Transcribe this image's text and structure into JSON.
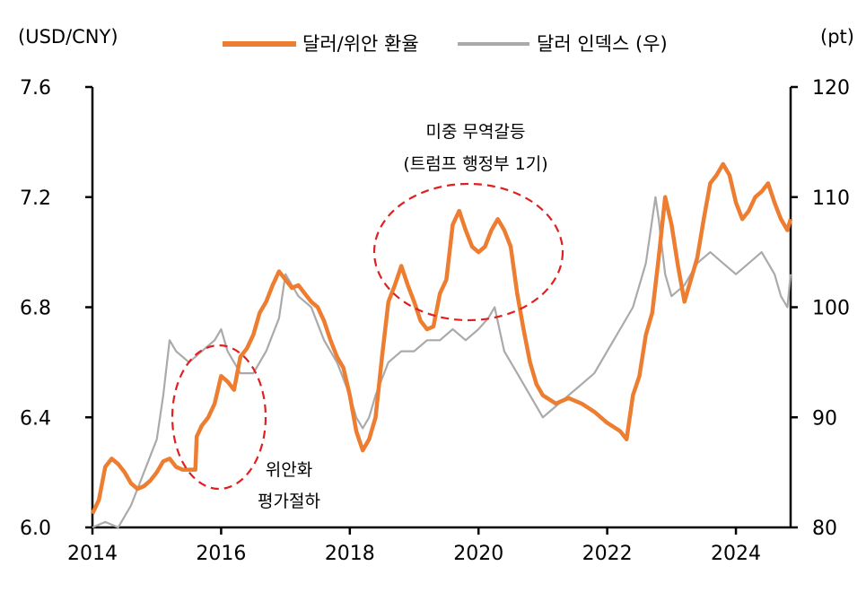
{
  "chart_data": {
    "type": "line",
    "title": "",
    "left_axis": {
      "label": "(USD/CNY)",
      "range": [
        6.0,
        7.6
      ],
      "ticks": [
        "6.0",
        "6.4",
        "6.8",
        "7.2",
        "7.6"
      ]
    },
    "right_axis": {
      "label": "(pt)",
      "range": [
        80,
        120
      ],
      "ticks": [
        "80",
        "90",
        "100",
        "110",
        "120"
      ]
    },
    "x_axis": {
      "range": [
        2014,
        2024.85
      ],
      "ticks": [
        "2014",
        "2016",
        "2018",
        "2020",
        "2022",
        "2024"
      ]
    },
    "legend": {
      "placement": "top"
    },
    "series": [
      {
        "name": "달러/위안 환율",
        "axis": "left",
        "color": "#ED7D31",
        "x": [
          2014.0,
          2014.1,
          2014.2,
          2014.3,
          2014.4,
          2014.5,
          2014.6,
          2014.7,
          2014.8,
          2014.9,
          2015.0,
          2015.1,
          2015.2,
          2015.3,
          2015.4,
          2015.5,
          2015.6,
          2015.62,
          2015.7,
          2015.8,
          2015.9,
          2016.0,
          2016.1,
          2016.2,
          2016.3,
          2016.4,
          2016.5,
          2016.6,
          2016.7,
          2016.8,
          2016.9,
          2017.0,
          2017.1,
          2017.2,
          2017.3,
          2017.4,
          2017.5,
          2017.6,
          2017.7,
          2017.8,
          2017.9,
          2018.0,
          2018.1,
          2018.2,
          2018.3,
          2018.4,
          2018.5,
          2018.6,
          2018.7,
          2018.8,
          2018.9,
          2019.0,
          2019.1,
          2019.2,
          2019.3,
          2019.4,
          2019.5,
          2019.6,
          2019.7,
          2019.8,
          2019.9,
          2020.0,
          2020.1,
          2020.2,
          2020.3,
          2020.4,
          2020.5,
          2020.6,
          2020.7,
          2020.8,
          2020.9,
          2021.0,
          2021.2,
          2021.4,
          2021.6,
          2021.8,
          2022.0,
          2022.2,
          2022.3,
          2022.4,
          2022.5,
          2022.6,
          2022.7,
          2022.8,
          2022.9,
          2023.0,
          2023.1,
          2023.2,
          2023.3,
          2023.4,
          2023.5,
          2023.6,
          2023.7,
          2023.8,
          2023.9,
          2024.0,
          2024.1,
          2024.2,
          2024.3,
          2024.4,
          2024.5,
          2024.6,
          2024.7,
          2024.8,
          2024.85
        ],
        "y": [
          6.05,
          6.1,
          6.22,
          6.25,
          6.23,
          6.2,
          6.16,
          6.14,
          6.15,
          6.17,
          6.2,
          6.24,
          6.25,
          6.22,
          6.21,
          6.21,
          6.21,
          6.33,
          6.37,
          6.4,
          6.45,
          6.55,
          6.53,
          6.5,
          6.62,
          6.65,
          6.7,
          6.78,
          6.82,
          6.88,
          6.93,
          6.9,
          6.87,
          6.88,
          6.85,
          6.82,
          6.8,
          6.75,
          6.68,
          6.62,
          6.58,
          6.48,
          6.35,
          6.28,
          6.32,
          6.4,
          6.62,
          6.82,
          6.88,
          6.95,
          6.88,
          6.82,
          6.75,
          6.72,
          6.73,
          6.85,
          6.9,
          7.1,
          7.15,
          7.08,
          7.02,
          7.0,
          7.02,
          7.08,
          7.12,
          7.08,
          7.02,
          6.85,
          6.72,
          6.6,
          6.52,
          6.48,
          6.45,
          6.47,
          6.45,
          6.42,
          6.38,
          6.35,
          6.32,
          6.48,
          6.55,
          6.7,
          6.78,
          6.98,
          7.2,
          7.1,
          6.95,
          6.82,
          6.9,
          6.98,
          7.12,
          7.25,
          7.28,
          7.32,
          7.28,
          7.18,
          7.12,
          7.15,
          7.2,
          7.22,
          7.25,
          7.18,
          7.12,
          7.08,
          7.12
        ]
      },
      {
        "name": "달러 인덱스 (우)",
        "axis": "right",
        "color": "#AAAAAA",
        "x": [
          2014.0,
          2014.2,
          2014.4,
          2014.5,
          2014.6,
          2014.8,
          2015.0,
          2015.1,
          2015.2,
          2015.3,
          2015.5,
          2015.7,
          2015.9,
          2016.0,
          2016.1,
          2016.2,
          2016.3,
          2016.5,
          2016.7,
          2016.9,
          2017.0,
          2017.2,
          2017.4,
          2017.6,
          2017.8,
          2018.0,
          2018.1,
          2018.2,
          2018.3,
          2018.4,
          2018.6,
          2018.8,
          2019.0,
          2019.2,
          2019.4,
          2019.6,
          2019.8,
          2020.0,
          2020.15,
          2020.25,
          2020.4,
          2020.6,
          2020.8,
          2021.0,
          2021.2,
          2021.4,
          2021.6,
          2021.8,
          2022.0,
          2022.2,
          2022.4,
          2022.6,
          2022.75,
          2022.8,
          2022.9,
          2023.0,
          2023.2,
          2023.4,
          2023.6,
          2023.8,
          2024.0,
          2024.2,
          2024.4,
          2024.6,
          2024.7,
          2024.8,
          2024.85
        ],
        "y": [
          80,
          80.5,
          80,
          81,
          82,
          85,
          88,
          92,
          97,
          96,
          95,
          96,
          97,
          98,
          96,
          95,
          94,
          94,
          96,
          99,
          103,
          101,
          100,
          97,
          95,
          92,
          90,
          89,
          90,
          92,
          95,
          96,
          96,
          97,
          97,
          98,
          97,
          98,
          99,
          100,
          96,
          94,
          92,
          90,
          91,
          92,
          93,
          94,
          96,
          98,
          100,
          104,
          110,
          108,
          103,
          101,
          102,
          104,
          105,
          104,
          103,
          104,
          105,
          103,
          101,
          100,
          103
        ]
      }
    ]
  },
  "annotations": {
    "devaluation_line1": "위안화",
    "devaluation_line2": "평가절하",
    "trade_war_line1": "미중 무역갈등",
    "trade_war_line2": "(트럼프 행정부 1기)"
  }
}
